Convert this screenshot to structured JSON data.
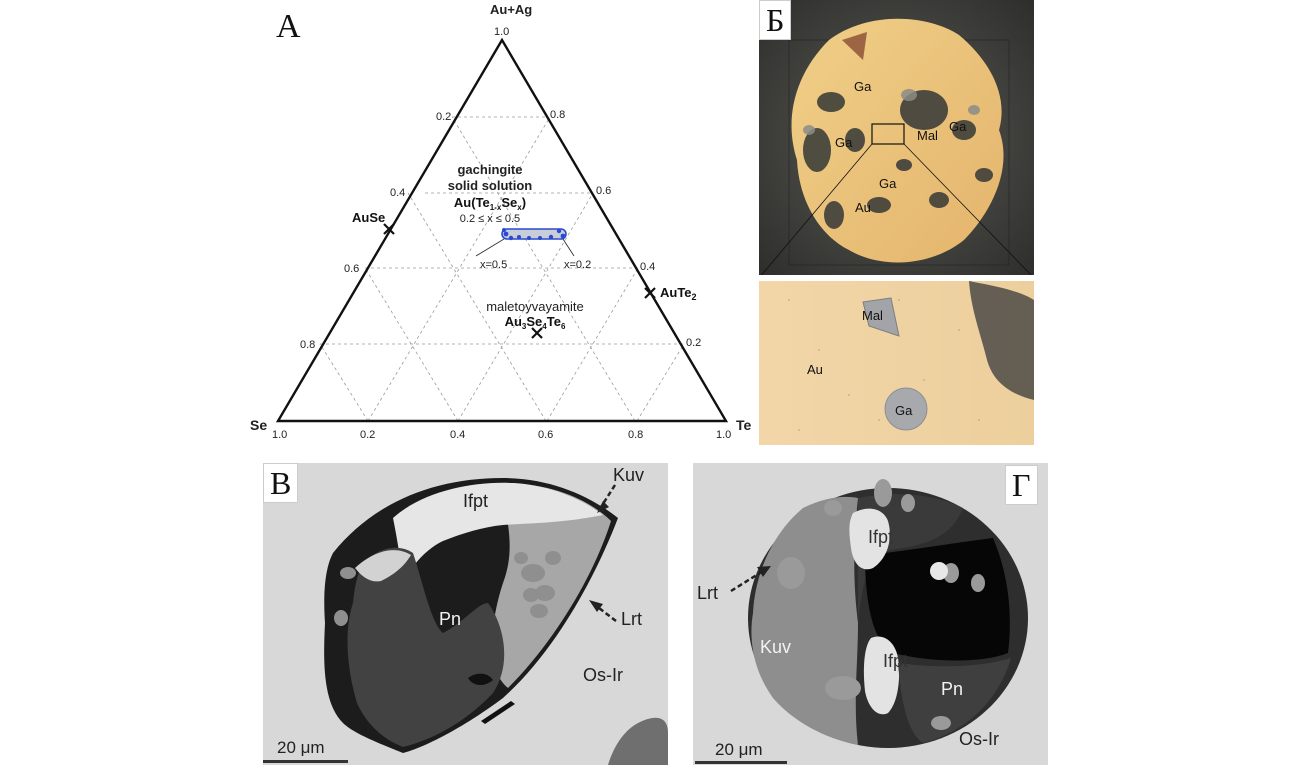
{
  "panel_a": {
    "letter": "А",
    "apex_top": "Au+Ag",
    "apex_left": "Se",
    "apex_right": "Te",
    "top_value": "1.0",
    "left_value": "1.0",
    "right_value": "1.0",
    "left_ticks": [
      "0.2",
      "0.4",
      "0.6",
      "0.8"
    ],
    "right_ticks": [
      "0.8",
      "0.6",
      "0.4",
      "0.2"
    ],
    "bottom_ticks": [
      "0.2",
      "0.4",
      "0.6",
      "0.8"
    ],
    "points": {
      "ause": "AuSe",
      "aute2_main": "AuTe",
      "aute2_sub": "2"
    },
    "gachingite": {
      "line1": "gachingite",
      "line2": "solid solution",
      "formula_au": "Au(Te",
      "formula_sub1": "1-x",
      "formula_se": "Se",
      "formula_sub2": "x",
      "formula_end": ")",
      "range": "0.2 ≤ x ≤ 0.5",
      "x_left": "x=0.5",
      "x_right": "x=0.2"
    },
    "maletoyvayamite": {
      "name": "maletoyvayamite",
      "f1": "Au",
      "s1": "3",
      "f2": "Se",
      "s2": "4",
      "f3": "Te",
      "s3": "6"
    }
  },
  "panel_b": {
    "letter": "Б",
    "top_labels": [
      "Ga",
      "Mal",
      "Ga",
      "Ga",
      "Ga",
      "Au"
    ],
    "bottom_labels": [
      "Mal",
      "Au",
      "Ga"
    ]
  },
  "panel_v": {
    "letter": "В",
    "labels": [
      "Ifpt",
      "Kuv",
      "Pn",
      "Lrt",
      "Os-Ir"
    ],
    "scale": "20 μm"
  },
  "panel_g": {
    "letter": "Г",
    "labels": [
      "Ifpt",
      "Lrt",
      "Kuv",
      "Ifpt",
      "Pn",
      "Os-Ir"
    ],
    "scale": "20 μm"
  },
  "colors": {
    "gold": "#efc97a",
    "gold_dark": "#d9a85a",
    "bse_light": "#d8d8d8",
    "bse_gray": "#9a9a9a",
    "bse_dark": "#4a4a4a",
    "blue_points": "#2a4ad0"
  }
}
